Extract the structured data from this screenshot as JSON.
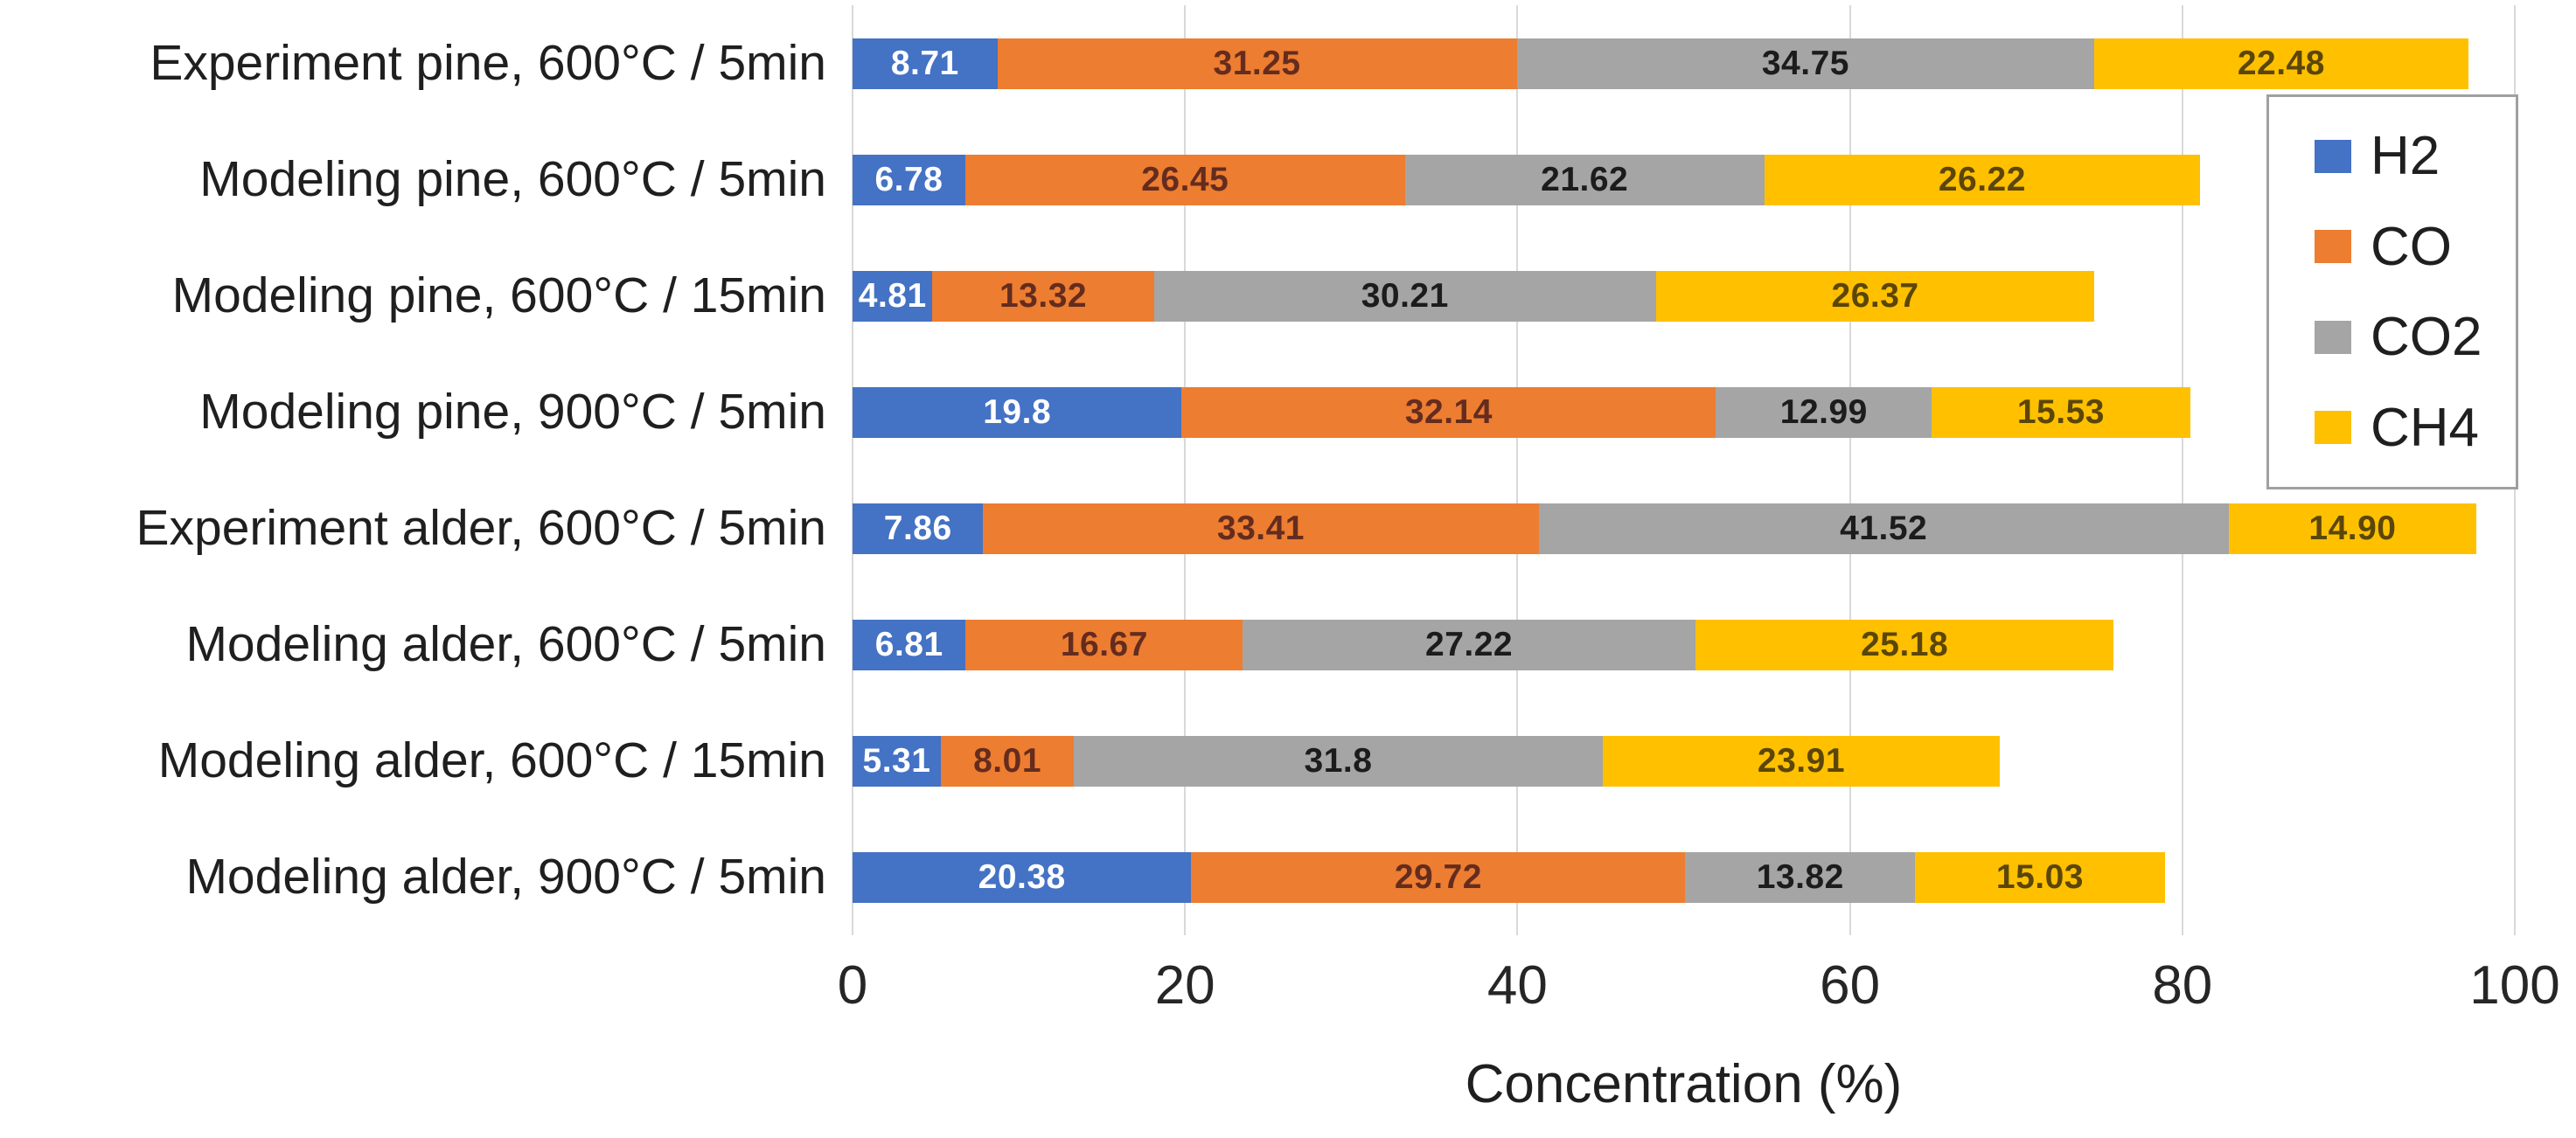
{
  "chart_data": {
    "type": "bar",
    "orientation": "horizontal",
    "stacked": true,
    "title": "",
    "xlabel": "Concentration (%)",
    "ylabel": "",
    "xlim": [
      0,
      100
    ],
    "xticks": [
      0,
      20,
      40,
      60,
      80,
      100
    ],
    "grid": "vertical",
    "legend_position": "top-right",
    "categories": [
      "Experiment pine, 600°C / 5min",
      "Modeling pine, 600°C / 5min",
      "Modeling pine, 600°C / 15min",
      "Modeling pine, 900°C / 5min",
      "Experiment alder, 600°C / 5min",
      "Modeling alder, 600°C / 5min",
      "Modeling alder, 600°C / 15min",
      "Modeling alder, 900°C / 5min"
    ],
    "series": [
      {
        "name": "H2",
        "color": "#4472C4",
        "label_color": "#FFFFFF",
        "values": [
          8.71,
          6.78,
          4.81,
          19.8,
          7.86,
          6.81,
          5.31,
          20.38
        ],
        "labels": [
          "8.71",
          "6.78",
          "4.81",
          "19.8",
          "7.86",
          "6.81",
          "5.31",
          "20.38"
        ]
      },
      {
        "name": "CO",
        "color": "#ED7D31",
        "label_color": "#642C1E",
        "values": [
          31.25,
          26.45,
          13.32,
          32.14,
          33.41,
          16.67,
          8.01,
          29.72
        ],
        "labels": [
          "31.25",
          "26.45",
          "13.32",
          "32.14",
          "33.41",
          "16.67",
          "8.01",
          "29.72"
        ]
      },
      {
        "name": "CO2",
        "color": "#A5A5A5",
        "label_color": "#1C1C1C",
        "values": [
          34.75,
          21.62,
          30.21,
          12.99,
          41.52,
          27.22,
          31.8,
          13.82
        ],
        "labels": [
          "34.75",
          "21.62",
          "30.21",
          "12.99",
          "41.52",
          "27.22",
          "31.8",
          "13.82"
        ]
      },
      {
        "name": "CH4",
        "color": "#FFC000",
        "label_color": "#5B4608",
        "values": [
          22.48,
          26.22,
          26.37,
          15.53,
          14.9,
          25.18,
          23.91,
          15.03
        ],
        "labels": [
          "22.48",
          "26.22",
          "26.37",
          "15.53",
          "14.90",
          "25.18",
          "23.91",
          "15.03"
        ]
      }
    ]
  }
}
